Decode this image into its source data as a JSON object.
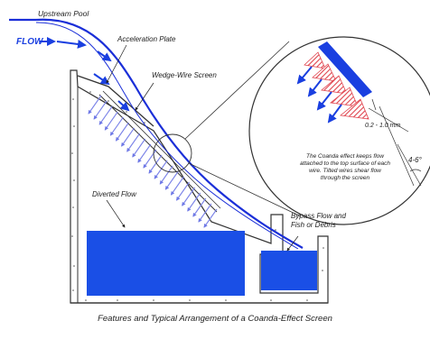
{
  "figure": {
    "caption": "Features and Typical Arrangement of a Coanda-Effect Screen",
    "labels": {
      "upstream_pool": "Upstream Pool",
      "flow": "FLOW",
      "acceleration_plate": "Acceleration Plate",
      "wedge_wire_screen": "Wedge-Wire Screen",
      "diverted_flow": "Diverted Flow",
      "bypass_flow_line1": "Bypass Flow and",
      "bypass_flow_line2": "Fish or Debris",
      "gap_dimension": "0.2 - 1.0 mm",
      "tilt_angle": "4-6°",
      "coanda_note_lines": [
        "The Coanda effect keeps flow",
        "attached to the top surface of each",
        "wire.  Tilted wires shear flow",
        "through the screen"
      ]
    },
    "colors": {
      "water": "#1a4fe6",
      "jet": "#1b2fd8",
      "screen_flow": "#7b83e8",
      "hatch": "#e0444e",
      "structure": "#333333"
    }
  }
}
